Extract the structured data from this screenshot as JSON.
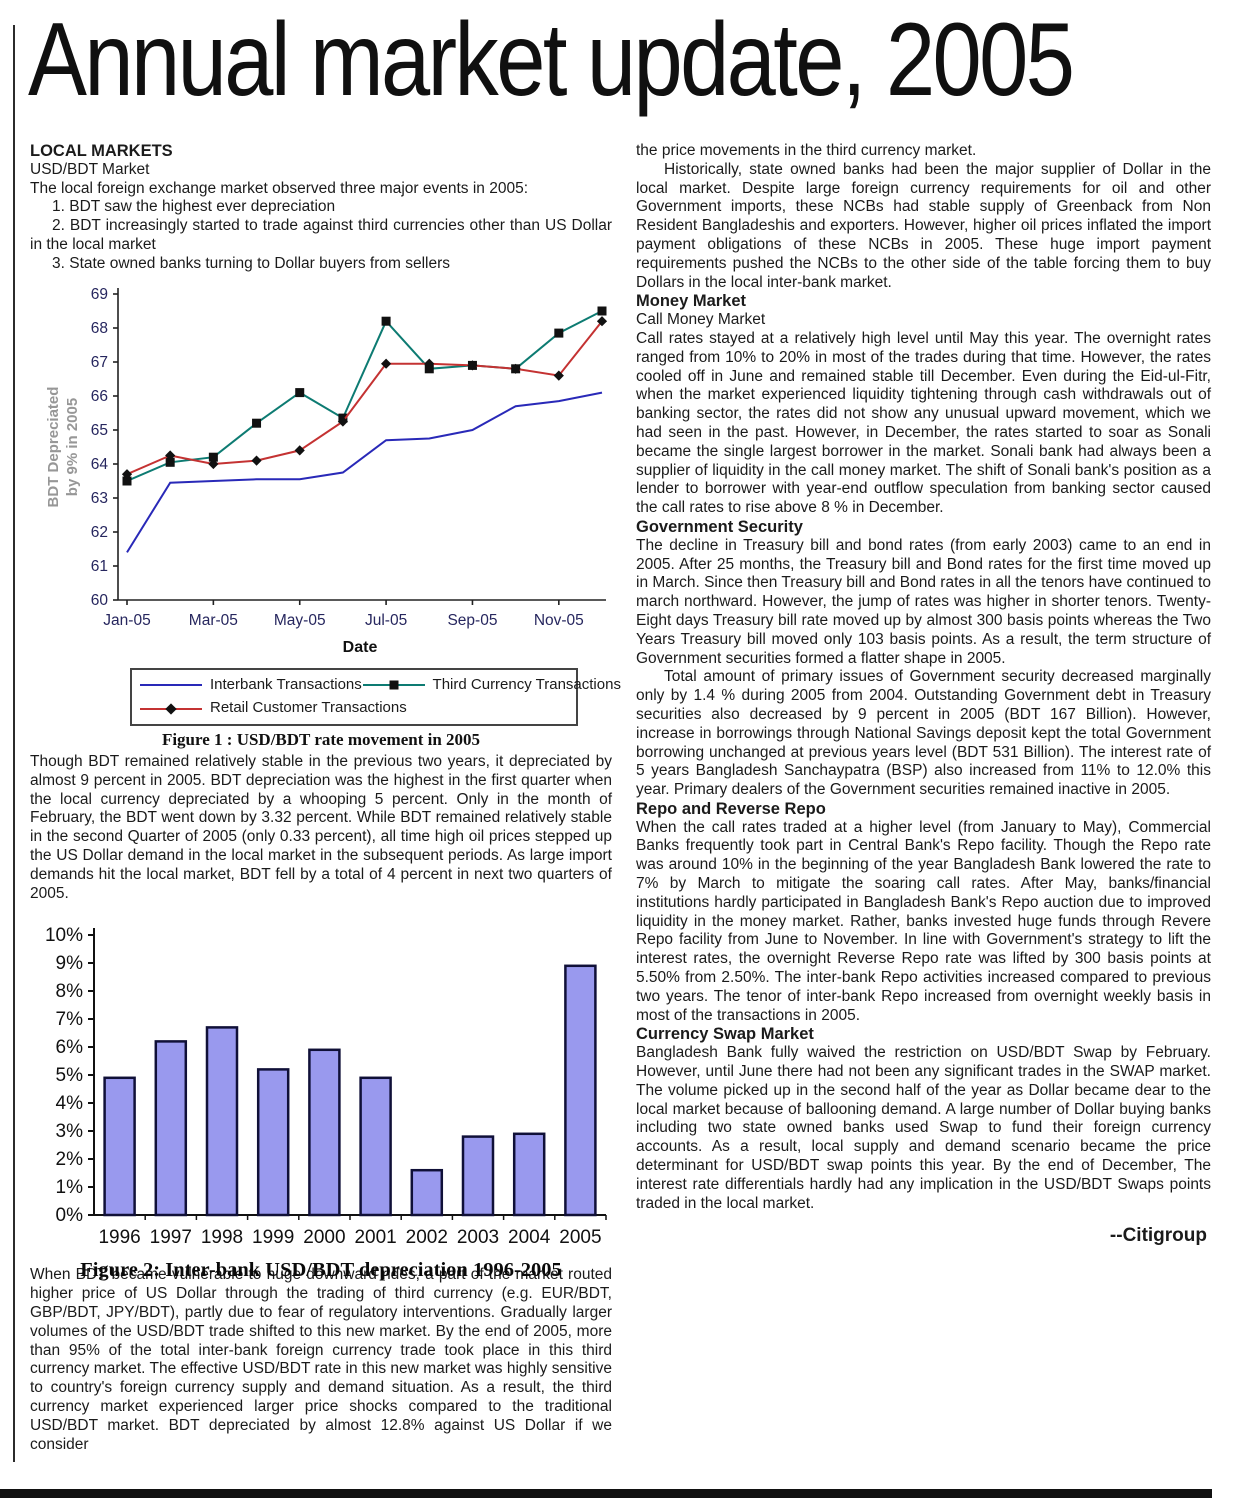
{
  "title": "Annual market update, 2005",
  "left": {
    "heading": "LOCAL MARKETS",
    "subheading": "USD/BDT Market",
    "intro": "The local foreign exchange market observed three major events in 2005:",
    "item1": "1. BDT saw the highest ever depreciation",
    "item2": "2. BDT increasingly started to trade against third currencies other than US Dollar in the local market",
    "item3": "3. State owned banks turning to Dollar buyers from sellers",
    "fig1_caption": "Figure 1 : USD/BDT rate movement in 2005",
    "para1": "Though BDT remained relatively stable in the previous two years, it depreciated by almost 9 percent in 2005. BDT depreciation was the highest in the first quarter when the local currency depreciated by a whooping 5 percent. Only in the month of February, the BDT went down by 3.32 percent. While BDT remained relatively stable in the second Quarter of 2005 (only 0.33 percent), all time high oil prices stepped up the US Dollar demand in the local market in the subsequent periods. As large import demands hit the local market, BDT fell by a total of 4 percent in next two quarters of 2005.",
    "fig2_caption": "Figure 2: Inter-bank USD/BDT depreciation 1996-2005",
    "para2": "When BDT became vulnerable to huge downward rides, a part of the market routed higher price of US Dollar through the trading of third currency (e.g. EUR/BDT, GBP/BDT, JPY/BDT), partly due to fear of regulatory interventions. Gradually larger volumes of the USD/BDT trade shifted to this new market. By the end of 2005, more than 95% of the total inter-bank foreign currency trade took place in this third currency market. The effective USD/BDT rate in this new market was highly sensitive to country's foreign currency supply and demand situation. As a result, the third currency market experienced larger price shocks compared to the traditional USD/BDT market. BDT depreciated by almost 12.8% against US Dollar if we consider"
  },
  "right": {
    "p0": "the price movements in the third currency market.",
    "p1": "Historically, state owned banks had been the major supplier of Dollar in the local market. Despite large foreign currency requirements for oil and other Government imports, these NCBs had stable supply of Greenback from Non Resident Bangladeshis and exporters. However, higher oil prices inflated the import payment obligations of these NCBs in 2005. These huge import payment requirements pushed the NCBs to the other side of the table forcing them to buy Dollars in the local inter-bank market.",
    "h_money": "Money Market",
    "sub_money": "Call Money Market",
    "p2": "Call rates stayed at a relatively high level until May this year. The overnight rates ranged from 10% to 20% in most of the trades during that time. However, the rates cooled off in June and remained stable till December. Even during the Eid-ul-Fitr, when the market experienced liquidity tightening through cash withdrawals out of banking sector, the rates did not show any unusual upward movement, which we had seen in the past. However, in December, the rates started to soar as Sonali became the single largest borrower in the market. Sonali bank had always been a supplier of liquidity in the call money market. The shift of Sonali bank's position as a lender to borrower with year-end outflow speculation from banking sector caused the call rates to rise above 8 % in December.",
    "h_gov": "Government Security",
    "p3": "The decline in Treasury bill and bond rates (from early 2003) came to an end in 2005. After 25 months, the Treasury bill and Bond rates for the first time moved up in March. Since then Treasury bill and Bond rates in all the tenors have continued to march northward. However, the jump of rates was higher in shorter tenors. Twenty-Eight days Treasury bill rate moved up by almost 300 basis points whereas the Two Years Treasury bill moved only 103 basis points. As a result, the term structure of Government securities formed a flatter shape in 2005.",
    "p4": "Total amount of primary issues of Government security decreased marginally only by 1.4 % during 2005 from 2004. Outstanding Government debt in Treasury securities also decreased by 9 percent in 2005 (BDT 167 Billion). However, increase in borrowings through National Savings deposit kept the total Government borrowing unchanged at previous years level (BDT 531 Billion). The interest rate of 5 years Bangladesh Sanchaypatra (BSP) also increased from 11% to 12.0% this year. Primary dealers of the Government securities remained inactive in 2005.",
    "h_repo": "Repo and Reverse Repo",
    "p5": "When the call rates traded at a higher level (from January to May), Commercial Banks frequently took part in Central Bank's Repo facility. Though the Repo rate was around 10% in the beginning of the year Bangladesh Bank lowered the rate to 7% by March to mitigate the soaring call rates. After May, banks/financial institutions hardly participated in Bangladesh Bank's Repo auction due to improved liquidity in the money market. Rather, banks invested huge funds through Revere Repo facility from June to November. In line with Government's strategy to lift the interest rates, the overnight Reverse Repo rate was lifted by 300 basis points  at 5.50% from 2.50%.  The inter-bank Repo activities increased compared to previous two years. The tenor of inter-bank Repo increased from overnight weekly basis in most of the transactions in 2005.",
    "h_swap": "Currency Swap Market",
    "p6": "Bangladesh Bank fully waived the restriction on USD/BDT Swap by February. However, until June there had not been any significant trades in the SWAP market. The volume picked up in the second half of the year as Dollar became dear to the local market because of ballooning demand. A large number of Dollar buying banks including two state owned banks used Swap to fund their foreign currency accounts. As a result, local supply and demand scenario became the price determinant for USD/BDT swap points this year. By the end of December, The interest rate differentials hardly had any implication in the USD/BDT Swaps points traded in the local market.",
    "signature": "--Citigroup"
  },
  "chart_data": [
    {
      "type": "line",
      "title": "USD/BDT rate movement in 2005",
      "x": [
        "Jan-05",
        "Feb-05",
        "Mar-05",
        "Apr-05",
        "May-05",
        "Jun-05",
        "Jul-05",
        "Aug-05",
        "Sep-05",
        "Oct-05",
        "Nov-05",
        "Dec-05"
      ],
      "xticks": [
        "Jan-05",
        "Mar-05",
        "May-05",
        "Jul-05",
        "Sep-05",
        "Nov-05"
      ],
      "xlabel": "Date",
      "ylabel_lines": [
        "BDT Depreciated",
        "by 9% in 2005"
      ],
      "ylim": [
        60,
        69
      ],
      "ytick_step": 1,
      "tick_color": "#26265e",
      "ylabel_color": "#979797",
      "legend_position": "bottom-box",
      "grid": false,
      "series": [
        {
          "name": "Interbank Transactions",
          "color": "#2929b8",
          "marker": "none",
          "values": [
            61.4,
            63.45,
            63.5,
            63.55,
            63.55,
            63.75,
            64.7,
            64.75,
            65.0,
            65.7,
            65.85,
            66.1
          ]
        },
        {
          "name": "Third Currency Transactions",
          "color": "#0d7b72",
          "marker": "square",
          "values": [
            63.5,
            64.05,
            64.2,
            65.2,
            66.1,
            65.35,
            68.2,
            66.8,
            66.9,
            66.8,
            67.85,
            68.5
          ]
        },
        {
          "name": "Retail Customer Transactions",
          "color": "#c43232",
          "marker": "diamond",
          "values": [
            63.7,
            64.25,
            64.0,
            64.1,
            64.4,
            65.25,
            66.95,
            66.95,
            66.9,
            66.8,
            66.6,
            68.2
          ]
        }
      ]
    },
    {
      "type": "bar",
      "title": "Inter-bank USD/BDT depreciation 1996-2005",
      "categories": [
        "1996",
        "1997",
        "1998",
        "1999",
        "2000",
        "2001",
        "2002",
        "2003",
        "2004",
        "2005"
      ],
      "values": [
        4.9,
        6.2,
        6.7,
        5.2,
        5.9,
        4.9,
        1.6,
        2.8,
        2.9,
        8.9
      ],
      "ylim": [
        0,
        10
      ],
      "ytick_step": 1,
      "ytick_suffix": "%",
      "tick_color": "#111111",
      "bar_fill": "#9999ee",
      "bar_stroke": "#101038",
      "grid": false
    }
  ]
}
